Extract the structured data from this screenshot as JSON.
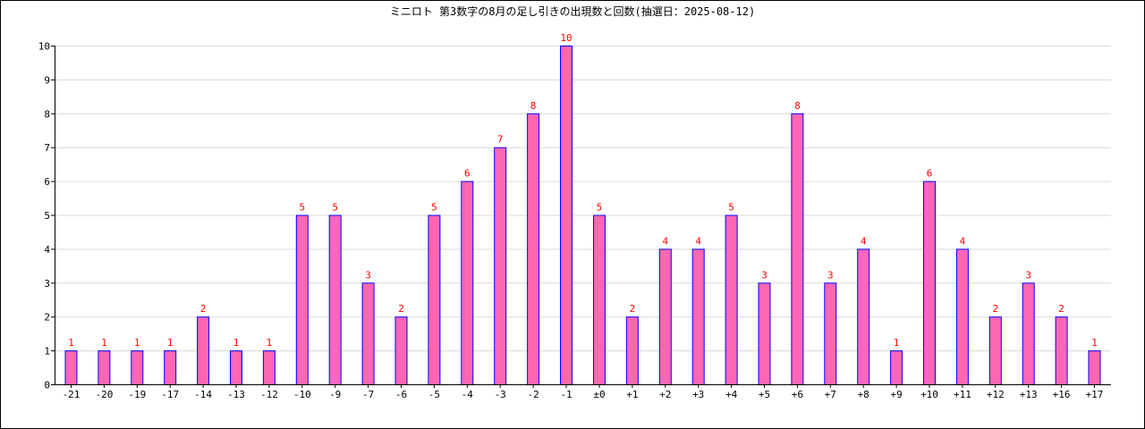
{
  "chart_data": {
    "type": "bar",
    "title": "ミニロト 第3数字の8月の足し引きの出現数と回数(抽選日：2025-08-12)",
    "categories": [
      "-21",
      "-20",
      "-19",
      "-17",
      "-14",
      "-13",
      "-12",
      "-10",
      "-9",
      "-7",
      "-6",
      "-5",
      "-4",
      "-3",
      "-2",
      "-1",
      "±0",
      "+1",
      "+2",
      "+3",
      "+4",
      "+5",
      "+6",
      "+7",
      "+8",
      "+9",
      "+10",
      "+11",
      "+12",
      "+13",
      "+16",
      "+17"
    ],
    "values": [
      1,
      1,
      1,
      1,
      2,
      1,
      1,
      5,
      5,
      3,
      2,
      5,
      6,
      7,
      8,
      10,
      5,
      2,
      4,
      4,
      5,
      3,
      8,
      3,
      4,
      1,
      6,
      4,
      2,
      3,
      2,
      1
    ],
    "ylim": [
      0,
      10
    ],
    "yticks": [
      0,
      1,
      2,
      3,
      4,
      5,
      6,
      7,
      8,
      9,
      10
    ],
    "grid": true,
    "legend": "none",
    "xlabel": "",
    "ylabel": ""
  },
  "colors": {
    "bar_fill": "#ff66b3",
    "bar_stroke": "#0000ff",
    "data_label": "#ff0000",
    "grid": "#d9d9d9",
    "axis": "#000000"
  }
}
